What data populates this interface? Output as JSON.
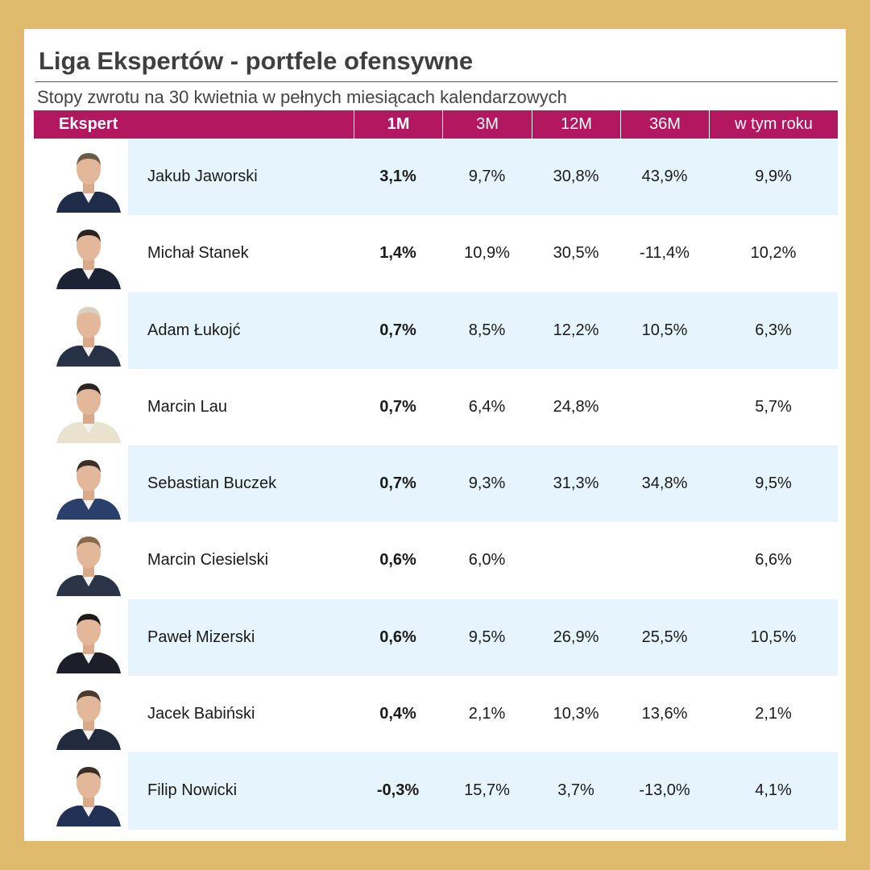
{
  "title": "Liga Ekspertów - portfele ofensywne",
  "subtitle": "Stopy zwrotu na 30 kwietnia w pełnych miesiącach kalendarzowych",
  "colors": {
    "header_bg": "#b3175f",
    "row_shade": "#e6f4fd",
    "frame": "#e0bb6e"
  },
  "chart_data": {
    "type": "table",
    "columns": [
      "Ekspert",
      "1M",
      "3M",
      "12M",
      "36M",
      "w tym roku"
    ],
    "rows": [
      {
        "name": "Jakub Jaworski",
        "m1": "3,1%",
        "m3": "9,7%",
        "m12": "30,8%",
        "m36": "43,9%",
        "ytd": "9,9%"
      },
      {
        "name": "Michał Stanek",
        "m1": "1,4%",
        "m3": "10,9%",
        "m12": "30,5%",
        "m36": "-11,4%",
        "ytd": "10,2%"
      },
      {
        "name": "Adam Łukojć",
        "m1": "0,7%",
        "m3": "8,5%",
        "m12": "12,2%",
        "m36": "10,5%",
        "ytd": "6,3%"
      },
      {
        "name": "Marcin Lau",
        "m1": "0,7%",
        "m3": "6,4%",
        "m12": "24,8%",
        "m36": "",
        "ytd": "5,7%"
      },
      {
        "name": "Sebastian Buczek",
        "m1": "0,7%",
        "m3": "9,3%",
        "m12": "31,3%",
        "m36": "34,8%",
        "ytd": "9,5%"
      },
      {
        "name": "Marcin Ciesielski",
        "m1": "0,6%",
        "m3": "6,0%",
        "m12": "",
        "m36": "",
        "ytd": "6,6%"
      },
      {
        "name": "Paweł Mizerski",
        "m1": "0,6%",
        "m3": "9,5%",
        "m12": "26,9%",
        "m36": "25,5%",
        "ytd": "10,5%"
      },
      {
        "name": "Jacek Babiński",
        "m1": "0,4%",
        "m3": "2,1%",
        "m12": "10,3%",
        "m36": "13,6%",
        "ytd": "2,1%"
      },
      {
        "name": "Filip Nowicki",
        "m1": "-0,3%",
        "m3": "15,7%",
        "m12": "3,7%",
        "m36": "-13,0%",
        "ytd": "4,1%"
      }
    ]
  }
}
